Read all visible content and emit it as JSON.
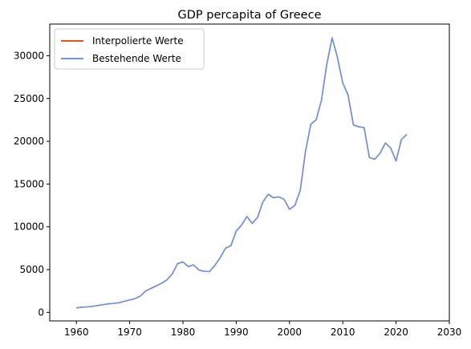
{
  "chart_data": {
    "type": "line",
    "title": "GDP percapita of Greece",
    "xlabel": "",
    "ylabel": "",
    "xlim": [
      1955,
      2030
    ],
    "ylim": [
      -1000,
      33700
    ],
    "xticks": [
      1960,
      1970,
      1980,
      1990,
      2000,
      2010,
      2020,
      2030
    ],
    "yticks": [
      0,
      5000,
      10000,
      15000,
      20000,
      25000,
      30000
    ],
    "grid": false,
    "legend_position": "top-left",
    "x": [
      1960,
      1961,
      1962,
      1963,
      1964,
      1965,
      1966,
      1967,
      1968,
      1969,
      1970,
      1971,
      1972,
      1973,
      1974,
      1975,
      1976,
      1977,
      1978,
      1979,
      1980,
      1981,
      1982,
      1983,
      1984,
      1985,
      1986,
      1987,
      1988,
      1989,
      1990,
      1991,
      1992,
      1993,
      1994,
      1995,
      1996,
      1997,
      1998,
      1999,
      2000,
      2001,
      2002,
      2003,
      2004,
      2005,
      2006,
      2007,
      2008,
      2009,
      2010,
      2011,
      2012,
      2013,
      2014,
      2015,
      2016,
      2017,
      2018,
      2019,
      2020,
      2021,
      2022
    ],
    "series": [
      {
        "name": "Interpolierte Werte",
        "color": "#e8541e",
        "values": [
          520,
          600,
          640,
          700,
          800,
          900,
          1000,
          1050,
          1120,
          1300,
          1450,
          1600,
          1900,
          2500,
          2800,
          3100,
          3400,
          3800,
          4500,
          5700,
          5900,
          5350,
          5550,
          4950,
          4800,
          4780,
          5500,
          6400,
          7500,
          7800,
          9500,
          10200,
          11200,
          10400,
          11100,
          12900,
          13800,
          13400,
          13500,
          13200,
          12050,
          12500,
          14200,
          18800,
          22000,
          22500,
          24800,
          29000,
          32100,
          29800,
          26800,
          25400,
          21900,
          21700,
          21600,
          18100,
          17900,
          18600,
          19800,
          19200,
          17700,
          20200,
          20800
        ]
      },
      {
        "name": "Bestehende Werte",
        "color": "#6a97e0",
        "values": [
          520,
          600,
          640,
          700,
          800,
          900,
          1000,
          1050,
          1120,
          1300,
          1450,
          1600,
          1900,
          2500,
          2800,
          3100,
          3400,
          3800,
          4500,
          5700,
          5900,
          5350,
          5550,
          4950,
          4800,
          4780,
          5500,
          6400,
          7500,
          7800,
          9500,
          10200,
          11200,
          10400,
          11100,
          12900,
          13800,
          13400,
          13500,
          13200,
          12050,
          12500,
          14200,
          18800,
          22000,
          22500,
          24800,
          29000,
          32100,
          29800,
          26800,
          25400,
          21900,
          21700,
          21600,
          18100,
          17900,
          18600,
          19800,
          19200,
          17700,
          20200,
          20800
        ]
      }
    ]
  }
}
